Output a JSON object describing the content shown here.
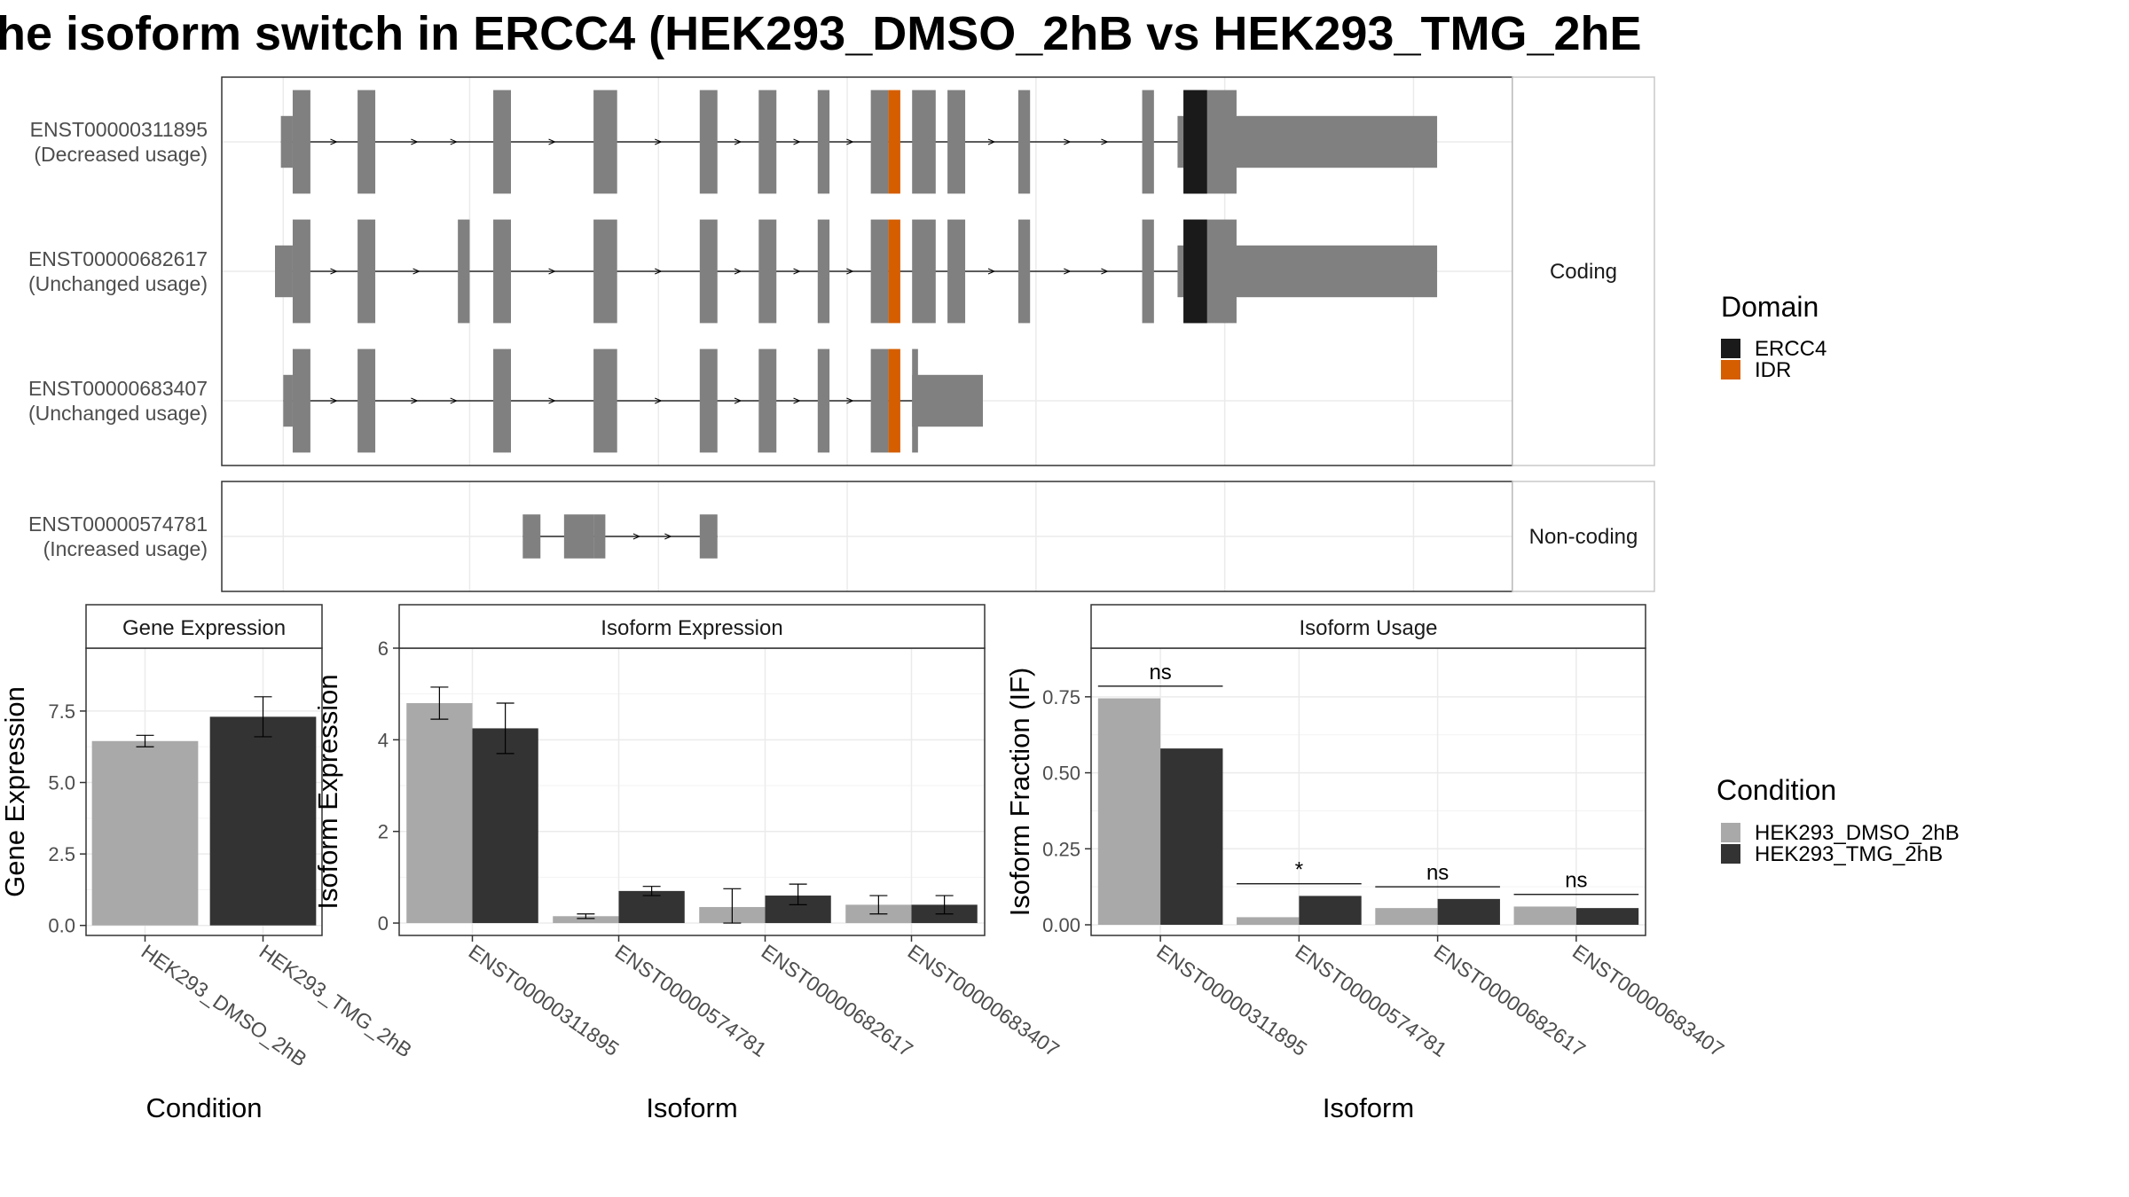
{
  "title": "he isoform switch in ERCC4 (HEK293_DMSO_2hB vs HEK293_TMG_2hE",
  "colors": {
    "exon": "#808080",
    "domain_ERCC4": "#1a1a1a",
    "domain_IDR": "#d55e00",
    "cond_DMSO": "#a9a9a9",
    "cond_TMG": "#333333",
    "grid": "#ebebeb",
    "strip_bg": "#ffffff"
  },
  "structure": {
    "genomic_range": [
      0,
      100
    ],
    "facets": [
      {
        "label": "Coding",
        "isoforms": [
          0,
          1,
          2
        ]
      },
      {
        "label": "Non-coding",
        "isoforms": [
          3
        ]
      }
    ],
    "isoforms": [
      {
        "id": "ENST00000311895",
        "usage": "(Decreased usage)",
        "utr": [
          [
            0.5,
            1.5
          ],
          [
            76.5,
            98.5
          ]
        ],
        "cds": [
          [
            1.5,
            3
          ],
          [
            7,
            8.5
          ],
          [
            18.5,
            20
          ],
          [
            27,
            29
          ],
          [
            36,
            37.5
          ],
          [
            41,
            42.5
          ],
          [
            46,
            47
          ],
          [
            50.5,
            52
          ],
          [
            54,
            56
          ],
          [
            57,
            58.5
          ],
          [
            63,
            64
          ],
          [
            73.5,
            74.5
          ],
          [
            77,
            80
          ],
          [
            80,
            81.5
          ]
        ],
        "domains": [
          {
            "name": "IDR",
            "start": 52,
            "end": 53
          },
          {
            "name": "ERCC4",
            "start": 77,
            "end": 79
          }
        ]
      },
      {
        "id": "ENST00000682617",
        "usage": "(Unchanged usage)",
        "utr": [
          [
            0,
            1.5
          ],
          [
            76.5,
            98.5
          ]
        ],
        "cds": [
          [
            1.5,
            3
          ],
          [
            7,
            8.5
          ],
          [
            15.5,
            16.5
          ],
          [
            18.5,
            20
          ],
          [
            27,
            29
          ],
          [
            36,
            37.5
          ],
          [
            41,
            42.5
          ],
          [
            46,
            47
          ],
          [
            50.5,
            52
          ],
          [
            54,
            56
          ],
          [
            57,
            58.5
          ],
          [
            63,
            64
          ],
          [
            73.5,
            74.5
          ],
          [
            77,
            80
          ],
          [
            80,
            81.5
          ]
        ],
        "domains": [
          {
            "name": "IDR",
            "start": 52,
            "end": 53
          },
          {
            "name": "ERCC4",
            "start": 77,
            "end": 79
          }
        ]
      },
      {
        "id": "ENST00000683407",
        "usage": "(Unchanged usage)",
        "utr": [
          [
            0.7,
            1.5
          ],
          [
            54,
            60
          ]
        ],
        "cds": [
          [
            1.5,
            3
          ],
          [
            7,
            8.5
          ],
          [
            18.5,
            20
          ],
          [
            27,
            29
          ],
          [
            36,
            37.5
          ],
          [
            41,
            42.5
          ],
          [
            46,
            47
          ],
          [
            50.5,
            52
          ],
          [
            54,
            54.5
          ]
        ],
        "domains": [
          {
            "name": "IDR",
            "start": 52,
            "end": 53
          }
        ]
      },
      {
        "id": "ENST00000574781",
        "usage": "(Increased usage)",
        "utr": [
          [
            21,
            22.5
          ],
          [
            24.5,
            27
          ],
          [
            27,
            28
          ],
          [
            36,
            37.5
          ]
        ],
        "cds": [],
        "domains": []
      }
    ]
  },
  "legend_domain": {
    "title": "Domain",
    "items": [
      {
        "label": "ERCC4",
        "color": "#1a1a1a"
      },
      {
        "label": "IDR",
        "color": "#d55e00"
      }
    ]
  },
  "legend_condition": {
    "title": "Condition",
    "items": [
      {
        "label": "HEK293_DMSO_2hB",
        "color": "#a9a9a9"
      },
      {
        "label": "HEK293_TMG_2hB",
        "color": "#333333"
      }
    ]
  },
  "chart_data": [
    {
      "type": "bar",
      "title": "Gene Expression",
      "xlabel": "Condition",
      "ylabel": "Gene Expression",
      "categories": [
        "HEK293_DMSO_2hB",
        "HEK293_TMG_2hB"
      ],
      "values": [
        6.45,
        7.3
      ],
      "error": [
        [
          6.25,
          6.65
        ],
        [
          6.6,
          8.0
        ]
      ],
      "ylim": [
        -0.35,
        9.7
      ],
      "yticks": [
        0.0,
        2.5,
        5.0,
        7.5
      ],
      "yticklabels": [
        "0.0",
        "2.5",
        "5.0",
        "7.5"
      ],
      "grid": true
    },
    {
      "type": "bar",
      "title": "Isoform Expression",
      "xlabel": "Isoform",
      "ylabel": "Isoform Expression",
      "categories": [
        "ENST00000311895",
        "ENST00000574781",
        "ENST00000682617",
        "ENST00000683407"
      ],
      "series": [
        {
          "name": "HEK293_DMSO_2hB",
          "values": [
            4.8,
            0.15,
            0.35,
            0.4
          ],
          "error": [
            [
              4.45,
              5.15
            ],
            [
              0.1,
              0.2
            ],
            [
              0.0,
              0.75
            ],
            [
              0.2,
              0.6
            ]
          ]
        },
        {
          "name": "HEK293_TMG_2hB",
          "values": [
            4.25,
            0.7,
            0.6,
            0.4
          ],
          "error": [
            [
              3.7,
              4.8
            ],
            [
              0.6,
              0.8
            ],
            [
              0.4,
              0.85
            ],
            [
              0.2,
              0.6
            ]
          ]
        }
      ],
      "ylim": [
        -0.27,
        6.0
      ],
      "yticks": [
        0,
        2,
        4,
        6
      ],
      "yticklabels": [
        "0",
        "2",
        "4",
        "6"
      ],
      "grid": true
    },
    {
      "type": "bar",
      "title": "Isoform Usage",
      "xlabel": "Isoform",
      "ylabel": "Isoform Fraction (IF)",
      "categories": [
        "ENST00000311895",
        "ENST00000574781",
        "ENST00000682617",
        "ENST00000683407"
      ],
      "series": [
        {
          "name": "HEK293_DMSO_2hB",
          "values": [
            0.745,
            0.025,
            0.055,
            0.06
          ]
        },
        {
          "name": "HEK293_TMG_2hB",
          "values": [
            0.58,
            0.095,
            0.085,
            0.055
          ]
        }
      ],
      "significance": [
        {
          "label": "ns",
          "y": 0.785
        },
        {
          "label": "*",
          "y": 0.135
        },
        {
          "label": "ns",
          "y": 0.125
        },
        {
          "label": "ns",
          "y": 0.1
        }
      ],
      "ylim": [
        -0.035,
        0.91
      ],
      "yticks": [
        0.0,
        0.25,
        0.5,
        0.75
      ],
      "yticklabels": [
        "0.00",
        "0.25",
        "0.50",
        "0.75"
      ],
      "grid": true
    }
  ]
}
